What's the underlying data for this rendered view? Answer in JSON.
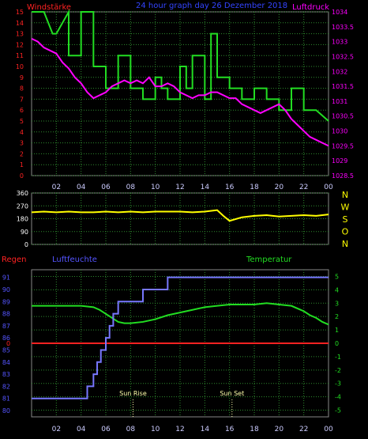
{
  "chart_data": [
    {
      "type": "line",
      "title": "24 hour graph day 26 Dezember 2018",
      "left_axis_label": "Windstärke",
      "right_axis_label": "Luftdruck",
      "left_ticks": [
        0,
        1,
        2,
        3,
        4,
        5,
        6,
        7,
        8,
        9,
        10,
        11,
        12,
        13,
        14,
        15
      ],
      "left_ylim": [
        0,
        15
      ],
      "right_ticks": [
        "1034",
        "1033.5",
        "1033",
        "1032.5",
        "1032",
        "1031.5",
        "1031",
        "1030.5",
        "1030",
        "1029.5",
        "1029",
        "1028.5"
      ],
      "right_ylim": [
        1028.5,
        1034
      ],
      "x_tick_labels": [
        "02",
        "04",
        "06",
        "08",
        "10",
        "12",
        "14",
        "16",
        "18",
        "20",
        "22",
        "00"
      ],
      "xlim": [
        0,
        24
      ],
      "grid": true,
      "colors": {
        "wind": "#22dd22",
        "pressure": "#ff00ff",
        "grid": "#2e8b2e",
        "title": "#3344ff",
        "left_label": "#ff2222",
        "right_label": "#ff00ff"
      },
      "series": [
        {
          "name": "Windstärke",
          "axis": "left",
          "step": true,
          "x": [
            0,
            1,
            1.7,
            2,
            3,
            3,
            4,
            4,
            5,
            5,
            6,
            6,
            7,
            7,
            8,
            8,
            9,
            9,
            10,
            10,
            10.5,
            10.5,
            11,
            11,
            12,
            12,
            12.5,
            12.5,
            13,
            13,
            14,
            14,
            14.5,
            14.5,
            15,
            15,
            16,
            16,
            17,
            17,
            18,
            18,
            19,
            19,
            20,
            20,
            21,
            21,
            22,
            22,
            23,
            24
          ],
          "y": [
            15,
            15,
            13,
            13,
            15,
            11,
            11,
            15,
            15,
            10,
            10,
            8,
            8,
            11,
            11,
            8,
            8,
            7,
            7,
            9,
            9,
            8,
            8,
            7,
            7,
            10,
            10,
            8,
            8,
            11,
            11,
            7,
            7,
            13,
            13,
            9,
            9,
            8,
            8,
            7,
            7,
            8,
            8,
            7,
            7,
            6,
            6,
            8,
            8,
            6,
            6,
            5
          ]
        },
        {
          "name": "Luftdruck",
          "axis": "right",
          "x": [
            0,
            0.5,
            1,
            1.5,
            2,
            2.5,
            3,
            3.5,
            4,
            4.5,
            5,
            5.5,
            6,
            6.5,
            7,
            7.5,
            8,
            8.5,
            9,
            9.5,
            10,
            10.5,
            11,
            11.5,
            12,
            12.5,
            13,
            13.5,
            14,
            14.5,
            15,
            15.5,
            16,
            16.5,
            17,
            17.5,
            18,
            18.5,
            19,
            19.5,
            20,
            20.5,
            21,
            21.5,
            22,
            22.5,
            23,
            23.5,
            24
          ],
          "y": [
            1033.1,
            1033.0,
            1032.8,
            1032.7,
            1032.6,
            1032.3,
            1032.1,
            1031.8,
            1031.6,
            1031.3,
            1031.1,
            1031.2,
            1031.3,
            1031.5,
            1031.6,
            1031.7,
            1031.6,
            1031.7,
            1031.6,
            1031.8,
            1031.5,
            1031.5,
            1031.6,
            1031.5,
            1031.3,
            1031.2,
            1031.1,
            1031.2,
            1031.2,
            1031.3,
            1031.3,
            1031.2,
            1031.1,
            1031.1,
            1030.9,
            1030.8,
            1030.7,
            1030.6,
            1030.7,
            1030.8,
            1030.9,
            1030.7,
            1030.4,
            1030.2,
            1030.0,
            1029.8,
            1029.7,
            1029.6,
            1029.5
          ]
        }
      ]
    },
    {
      "type": "line",
      "title": "",
      "right_labels": [
        "N",
        "W",
        "S",
        "O",
        "N"
      ],
      "y_ticks": [
        0,
        90,
        180,
        270,
        360
      ],
      "ylim": [
        0,
        360
      ],
      "x_tick_labels": [],
      "xlim": [
        0,
        24
      ],
      "grid": true,
      "colors": {
        "direction": "#ffff00",
        "grid": "#2e8b2e",
        "right_labels": "#ffff00"
      },
      "series": [
        {
          "name": "",
          "x": [
            0,
            1,
            2,
            3,
            4,
            5,
            6,
            7,
            8,
            9,
            10,
            11,
            12,
            13,
            14,
            15,
            15.5,
            16,
            17,
            18,
            19,
            20,
            21,
            22,
            23,
            24
          ],
          "y": [
            225,
            230,
            225,
            230,
            225,
            225,
            230,
            225,
            230,
            225,
            230,
            230,
            230,
            225,
            230,
            240,
            200,
            165,
            190,
            200,
            205,
            195,
            200,
            205,
            200,
            210
          ]
        }
      ]
    },
    {
      "type": "line",
      "title": "",
      "left_axis_label": "Regen",
      "left2_axis_label": "Luftfeuchte",
      "right_axis_label": "Temperatur",
      "humidity_ticks": [
        80,
        81,
        82,
        83,
        84,
        85,
        86,
        87,
        88,
        89,
        90,
        91
      ],
      "humidity_ylim": [
        80,
        91.5
      ],
      "rain_tick": "0",
      "temp_ticks": [
        5,
        4,
        3,
        2,
        1,
        0,
        -1,
        -2,
        -3,
        -4,
        -5
      ],
      "temp_ylim": [
        -5.5,
        5.5
      ],
      "x_tick_labels": [
        "02",
        "04",
        "06",
        "08",
        "10",
        "12",
        "14",
        "16",
        "18",
        "20",
        "22",
        "00"
      ],
      "xlim": [
        0,
        24
      ],
      "annotations": [
        "Sun Rise",
        "Sun Set"
      ],
      "grid": true,
      "colors": {
        "humidity": "#7777ff",
        "temperature": "#22dd22",
        "rain": "#ff2222",
        "grid": "#2e8b2e",
        "regen_label": "#ff2222",
        "humidity_label": "#5555ff",
        "temp_label": "#22dd22",
        "annotation": "#ffffaa"
      },
      "series": [
        {
          "name": "Luftfeuchte",
          "axis": "humidity",
          "step": true,
          "x": [
            0,
            4.5,
            4.5,
            5,
            5,
            5.3,
            5.3,
            5.6,
            5.6,
            6,
            6,
            6.3,
            6.3,
            6.6,
            6.6,
            7,
            7,
            7.5,
            7.5,
            9,
            9,
            11,
            11,
            13,
            13,
            14.8,
            14.8,
            24
          ],
          "y": [
            81,
            81,
            82,
            82,
            83,
            83,
            84,
            84,
            85,
            85,
            86,
            86,
            87,
            87,
            88,
            88,
            89,
            89,
            89,
            89,
            90,
            90,
            91,
            91,
            91,
            91,
            91,
            91
          ]
        },
        {
          "name": "Regen",
          "axis": "rain",
          "x": [
            0,
            24
          ],
          "y": [
            0,
            0
          ]
        },
        {
          "name": "Temperatur",
          "axis": "temp",
          "x": [
            0,
            1,
            2,
            3,
            4,
            5,
            5.5,
            6,
            6.5,
            7,
            7.5,
            8,
            9,
            10,
            11,
            12,
            13,
            14,
            15,
            16,
            17,
            18,
            19,
            20,
            21,
            22,
            22.5,
            23,
            23.5,
            24
          ],
          "y": [
            2.8,
            2.8,
            2.8,
            2.8,
            2.8,
            2.7,
            2.5,
            2.2,
            1.9,
            1.6,
            1.5,
            1.5,
            1.6,
            1.8,
            2.1,
            2.3,
            2.5,
            2.7,
            2.8,
            2.9,
            2.9,
            2.9,
            3.0,
            2.9,
            2.8,
            2.4,
            2.1,
            1.9,
            1.6,
            1.4
          ]
        }
      ]
    }
  ]
}
